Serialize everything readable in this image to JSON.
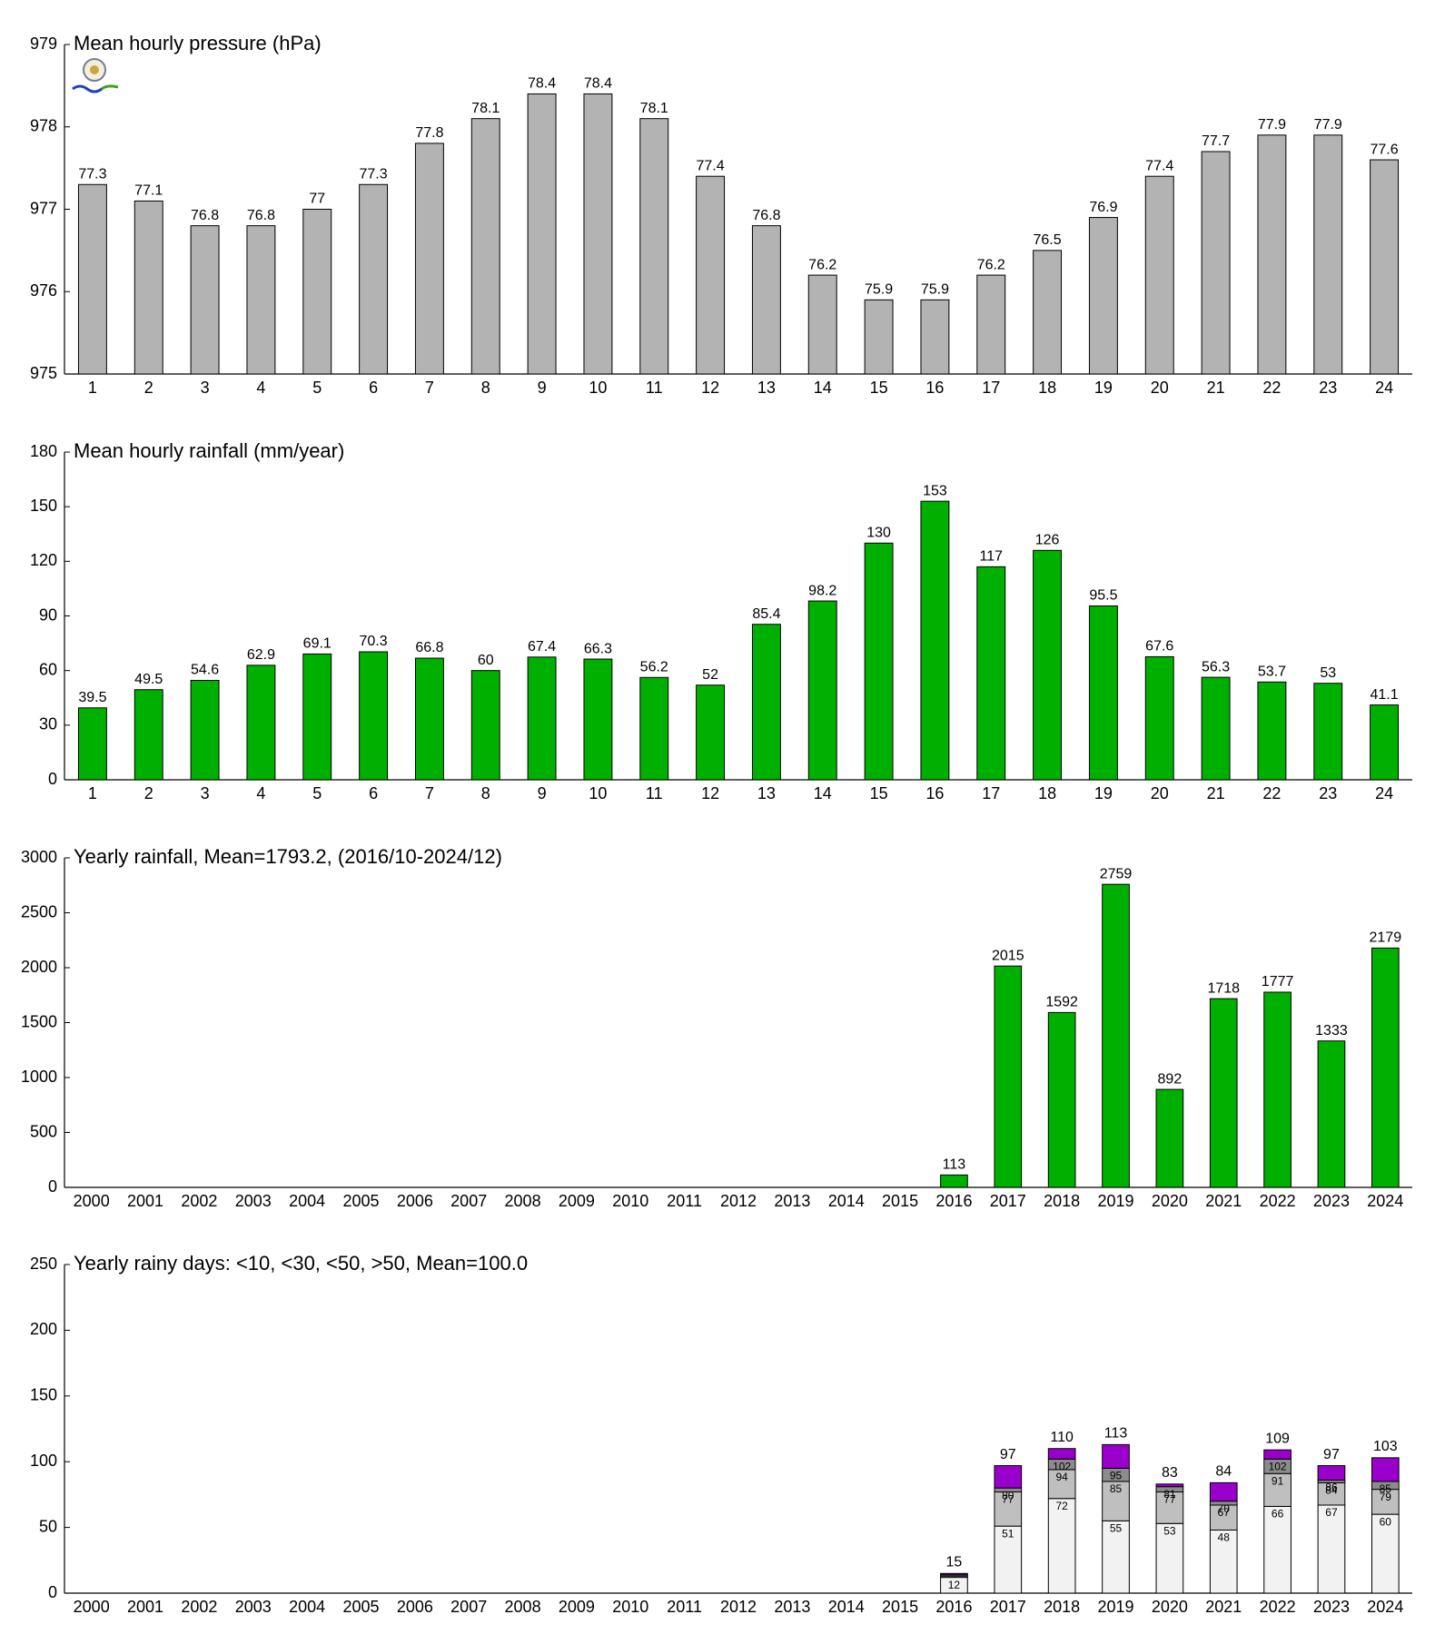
{
  "chart_data": [
    {
      "type": "bar",
      "title": "Mean hourly pressure (hPa)",
      "categories": [
        "1",
        "2",
        "3",
        "4",
        "5",
        "6",
        "7",
        "8",
        "9",
        "10",
        "11",
        "12",
        "13",
        "14",
        "15",
        "16",
        "17",
        "18",
        "19",
        "20",
        "21",
        "22",
        "23",
        "24"
      ],
      "values": [
        977.3,
        977.1,
        976.8,
        976.8,
        977,
        977.3,
        977.8,
        978.1,
        978.4,
        978.4,
        978.1,
        977.4,
        976.8,
        976.2,
        975.9,
        975.9,
        976.2,
        976.5,
        976.9,
        977.4,
        977.7,
        977.9,
        977.9,
        977.6
      ],
      "value_labels": [
        "77.3",
        "77.1",
        "76.8",
        "76.8",
        "77",
        "77.3",
        "77.8",
        "78.1",
        "78.4",
        "78.4",
        "78.1",
        "77.4",
        "76.8",
        "76.2",
        "75.9",
        "75.9",
        "76.2",
        "76.5",
        "76.9",
        "77.4",
        "77.7",
        "77.9",
        "77.9",
        "77.6"
      ],
      "color": "#b3b3b3",
      "ylim": [
        975,
        979
      ],
      "yticks": [
        975,
        976,
        977,
        978,
        979
      ]
    },
    {
      "type": "bar",
      "title": "Mean hourly rainfall (mm/year)",
      "categories": [
        "1",
        "2",
        "3",
        "4",
        "5",
        "6",
        "7",
        "8",
        "9",
        "10",
        "11",
        "12",
        "13",
        "14",
        "15",
        "16",
        "17",
        "18",
        "19",
        "20",
        "21",
        "22",
        "23",
        "24"
      ],
      "values": [
        39.5,
        49.5,
        54.6,
        62.9,
        69.1,
        70.3,
        66.8,
        60,
        67.4,
        66.3,
        56.2,
        52,
        85.4,
        98.2,
        130,
        153,
        117,
        126,
        95.5,
        67.6,
        56.3,
        53.7,
        53,
        41.1
      ],
      "color": "#00b000",
      "ylim": [
        0,
        180
      ],
      "yticks": [
        0,
        30,
        60,
        90,
        120,
        150,
        180
      ]
    },
    {
      "type": "bar",
      "title": "Yearly rainfall, Mean=1793.2, (2016/10-2024/12)",
      "categories": [
        "2000",
        "2001",
        "2002",
        "2003",
        "2004",
        "2005",
        "2006",
        "2007",
        "2008",
        "2009",
        "2010",
        "2011",
        "2012",
        "2013",
        "2014",
        "2015",
        "2016",
        "2017",
        "2018",
        "2019",
        "2020",
        "2021",
        "2022",
        "2023",
        "2024"
      ],
      "values": [
        null,
        null,
        null,
        null,
        null,
        null,
        null,
        null,
        null,
        null,
        null,
        null,
        null,
        null,
        null,
        null,
        113,
        2015,
        1592,
        2759,
        892,
        1718,
        1777,
        1333,
        2179
      ],
      "color": "#00b000",
      "ylim": [
        0,
        3000
      ],
      "yticks": [
        0,
        500,
        1000,
        1500,
        2000,
        2500,
        3000
      ]
    },
    {
      "type": "stacked_bar",
      "title": "Yearly rainy days: <10, <30, <50, >50, Mean=100.0",
      "categories": [
        "2000",
        "2001",
        "2002",
        "2003",
        "2004",
        "2005",
        "2006",
        "2007",
        "2008",
        "2009",
        "2010",
        "2011",
        "2012",
        "2013",
        "2014",
        "2015",
        "2016",
        "2017",
        "2018",
        "2019",
        "2020",
        "2021",
        "2022",
        "2023",
        "2024"
      ],
      "series": [
        {
          "color": "#f2f2f2",
          "values": [
            null,
            null,
            null,
            null,
            null,
            null,
            null,
            null,
            null,
            null,
            null,
            null,
            null,
            null,
            null,
            null,
            12,
            51,
            72,
            55,
            53,
            48,
            66,
            67,
            60
          ],
          "labels": [
            null,
            null,
            null,
            null,
            null,
            null,
            null,
            null,
            null,
            null,
            null,
            null,
            null,
            null,
            null,
            null,
            "12",
            "51",
            "72",
            "55",
            "53",
            "48",
            "66",
            "67",
            "60"
          ]
        },
        {
          "color": "#bfbfbf",
          "values": [
            null,
            null,
            null,
            null,
            null,
            null,
            null,
            null,
            null,
            null,
            null,
            null,
            null,
            null,
            null,
            null,
            1,
            26,
            22,
            30,
            24,
            19,
            25,
            17,
            19
          ],
          "labels": [
            null,
            null,
            null,
            null,
            null,
            null,
            null,
            null,
            null,
            null,
            null,
            null,
            null,
            null,
            null,
            null,
            null,
            "77",
            "94",
            "85",
            "77",
            "67",
            "91",
            "84",
            "79"
          ]
        },
        {
          "color": "#8c8c8c",
          "values": [
            null,
            null,
            null,
            null,
            null,
            null,
            null,
            null,
            null,
            null,
            null,
            null,
            null,
            null,
            null,
            null,
            1,
            3,
            8,
            10,
            4,
            3,
            11,
            2,
            6
          ],
          "labels": [
            null,
            null,
            null,
            null,
            null,
            null,
            null,
            null,
            null,
            null,
            null,
            null,
            null,
            null,
            null,
            null,
            null,
            "80",
            "102",
            "95",
            "81",
            "70",
            "102",
            "86",
            "85"
          ]
        },
        {
          "color": "#9900cc",
          "values": [
            null,
            null,
            null,
            null,
            null,
            null,
            null,
            null,
            null,
            null,
            null,
            null,
            null,
            null,
            null,
            null,
            1,
            17,
            8,
            18,
            2,
            14,
            7,
            11,
            18
          ],
          "labels": [
            null,
            null,
            null,
            null,
            null,
            null,
            null,
            null,
            null,
            null,
            null,
            null,
            null,
            null,
            null,
            null,
            "15",
            "97",
            "110",
            "113",
            "83",
            "84",
            "109",
            "97",
            "103"
          ]
        }
      ],
      "ylim": [
        0,
        250
      ],
      "yticks": [
        0,
        50,
        100,
        150,
        200,
        250
      ]
    }
  ]
}
